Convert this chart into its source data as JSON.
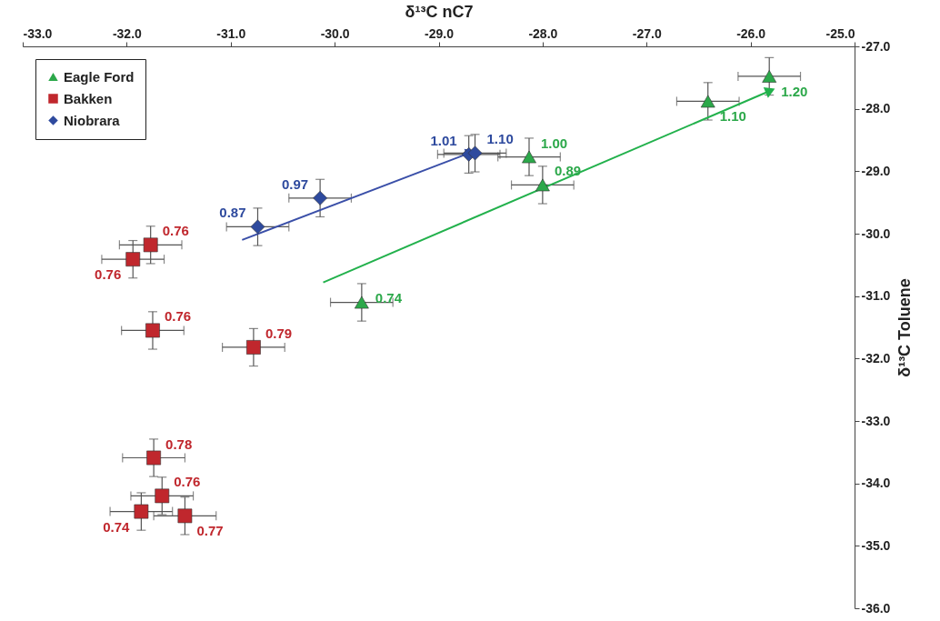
{
  "chart_data": {
    "type": "scatter",
    "xlabel": "δ¹³C nC7",
    "ylabel": "δ¹³C Toluene",
    "xlim": [
      -33,
      -25
    ],
    "ylim": [
      -36,
      -27
    ],
    "xticks": [
      {
        "value": -33,
        "label": "-33.0"
      },
      {
        "value": -32,
        "label": "-32.0"
      },
      {
        "value": -31,
        "label": "-31.0"
      },
      {
        "value": -30,
        "label": "-30.0"
      },
      {
        "value": -29,
        "label": "-29.0"
      },
      {
        "value": -28,
        "label": "-28.0"
      },
      {
        "value": -27,
        "label": "-27.0"
      },
      {
        "value": -26,
        "label": "-26.0"
      },
      {
        "value": -25,
        "label": "-25.0"
      }
    ],
    "yticks": [
      {
        "value": -36,
        "label": "-36.0"
      },
      {
        "value": -35,
        "label": "-35.0"
      },
      {
        "value": -34,
        "label": "-34.0"
      },
      {
        "value": -33,
        "label": "-33.0"
      },
      {
        "value": -32,
        "label": "-32.0"
      },
      {
        "value": -31,
        "label": "-31.0"
      },
      {
        "value": -30,
        "label": "-30.0"
      },
      {
        "value": -29,
        "label": "-29.0"
      },
      {
        "value": -28,
        "label": "-28.0"
      },
      {
        "value": -27,
        "label": "-27.0"
      }
    ],
    "grid": false,
    "legend": "top left",
    "series": [
      {
        "name": "Eagle Ford",
        "color": "#2ca84a",
        "marker": "triangle",
        "x": [
          -25.82,
          -26.41,
          -28.13,
          -28.0,
          -29.74
        ],
        "values": [
          -27.48,
          -27.88,
          -28.77,
          -29.22,
          -31.1
        ],
        "xerrors": [
          0.3,
          0.3,
          0.3,
          0.3,
          0.3
        ],
        "errors": [
          0.3,
          0.3,
          0.3,
          0.3,
          0.3
        ]
      },
      {
        "name": "Bakken",
        "color": "#c0272d",
        "marker": "square",
        "x": [
          -31.77,
          -31.94,
          -31.75,
          -30.78,
          -31.74,
          -31.66,
          -31.86,
          -31.44
        ],
        "values": [
          -30.18,
          -30.41,
          -31.55,
          -31.82,
          -33.59,
          -34.2,
          -34.45,
          -34.52
        ],
        "xerrors": [
          0.3,
          0.3,
          0.3,
          0.3,
          0.3,
          0.3,
          0.3,
          0.3
        ],
        "errors": [
          0.3,
          0.3,
          0.3,
          0.3,
          0.3,
          0.3,
          0.3,
          0.3
        ]
      },
      {
        "name": "Niobrara",
        "color": "#2e4a9e",
        "marker": "diamond",
        "x": [
          -30.74,
          -30.14,
          -28.71,
          -28.65
        ],
        "values": [
          -29.89,
          -29.43,
          -28.73,
          -28.71
        ],
        "xerrors": [
          0.3,
          0.3,
          0.3,
          0.3
        ],
        "errors": [
          0.3,
          0.3,
          0.3,
          0.3
        ]
      },
      {
        "type": "line",
        "color": "#3a4fa8",
        "x": [
          -30.89,
          -28.69
        ],
        "values": [
          -30.1,
          -28.7
        ]
      },
      {
        "type": "line",
        "color": "#22b14c",
        "x": [
          -30.11,
          -25.81
        ],
        "values": [
          -30.78,
          -27.71
        ]
      }
    ],
    "annotations": [
      {
        "text": "1.20",
        "x": -25.82,
        "y": -27.48
      },
      {
        "text": "1.10",
        "x": -26.41,
        "y": -27.88
      },
      {
        "text": "1.00",
        "x": -28.13,
        "y": -28.77
      },
      {
        "text": "0.89",
        "x": -28.0,
        "y": -29.22
      },
      {
        "text": "0.74",
        "x": -29.74,
        "y": -31.1
      },
      {
        "text": "0.76",
        "x": -31.77,
        "y": -30.18
      },
      {
        "text": "0.76",
        "x": -31.94,
        "y": -30.41
      },
      {
        "text": "0.76",
        "x": -31.75,
        "y": -31.55
      },
      {
        "text": "0.79",
        "x": -30.78,
        "y": -31.82
      },
      {
        "text": "0.78",
        "x": -31.74,
        "y": -33.59
      },
      {
        "text": "0.76",
        "x": -31.66,
        "y": -34.2
      },
      {
        "text": "0.74",
        "x": -31.86,
        "y": -34.45
      },
      {
        "text": "0.77",
        "x": -31.44,
        "y": -34.52
      },
      {
        "text": "0.87",
        "x": -30.74,
        "y": -29.89
      },
      {
        "text": "0.97",
        "x": -30.14,
        "y": -29.43
      },
      {
        "text": "1.01",
        "x": -28.71,
        "y": -28.73
      },
      {
        "text": "1.10",
        "x": -28.65,
        "y": -28.71
      }
    ]
  }
}
